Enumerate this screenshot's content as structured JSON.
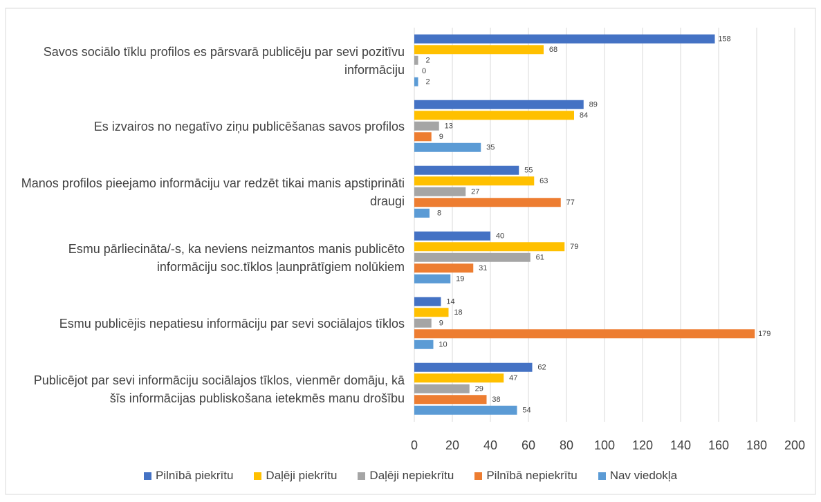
{
  "chart_data": {
    "type": "hbar",
    "categories": [
      "Savos sociālo tīklu profilos es pārsvarā publicēju par sevi pozitīvu informāciju",
      "Es izvairos no negatīvo ziņu publicēšanas savos profilos",
      "Manos profilos pieejamo informāciju var redzēt tikai manis apstiprināti draugi",
      "Esmu pārliecināta/-s, ka neviens neizmantos manis publicēto informāciju soc.tīklos ļaunprātīgiem nolūkiem",
      "Esmu publicējis nepatiesu informāciju par sevi sociālajos tīklos",
      "Publicējot par sevi informāciju sociālajos tīklos, vienmēr domāju, kā šīs informācijas publiskošana ietekmēs manu drošību"
    ],
    "series": [
      {
        "name": "Pilnībā piekrītu",
        "color": "#4472c4",
        "values": [
          158,
          89,
          55,
          40,
          14,
          62
        ]
      },
      {
        "name": "Daļēji piekrītu",
        "color": "#ffc000",
        "values": [
          68,
          84,
          63,
          79,
          18,
          47
        ]
      },
      {
        "name": "Daļēji nepiekrītu",
        "color": "#a5a5a5",
        "values": [
          2,
          13,
          27,
          61,
          9,
          29
        ]
      },
      {
        "name": "Pilnībā nepiekrītu",
        "color": "#ed7d31",
        "values": [
          0,
          9,
          77,
          31,
          179,
          38
        ]
      },
      {
        "name": "Nav viedokļa",
        "color": "#5b9bd5",
        "values": [
          2,
          35,
          8,
          19,
          10,
          54
        ]
      }
    ],
    "xlim": [
      0,
      200
    ],
    "xticks": [
      0,
      20,
      40,
      60,
      80,
      100,
      120,
      140,
      160,
      180,
      200
    ],
    "grid": true,
    "legend": "bottom"
  }
}
